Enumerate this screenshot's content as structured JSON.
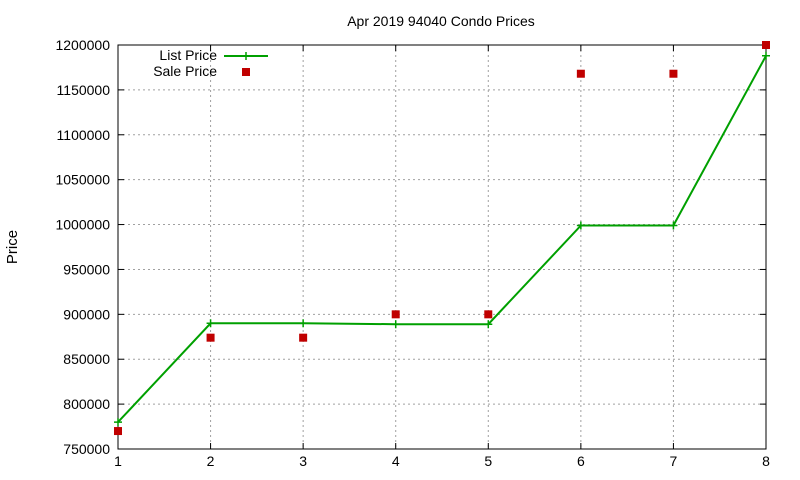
{
  "chart_data": {
    "type": "line",
    "title": "Apr 2019 94040 Condo Prices",
    "xlabel": "",
    "ylabel": "Price",
    "x": [
      1,
      2,
      3,
      4,
      5,
      6,
      7,
      8
    ],
    "xlim": [
      1,
      8
    ],
    "ylim": [
      750000,
      1200000
    ],
    "xticks": [
      "1",
      "2",
      "3",
      "4",
      "5",
      "6",
      "7",
      "8"
    ],
    "yticks": [
      "750000",
      "800000",
      "850000",
      "900000",
      "950000",
      "1000000",
      "1050000",
      "1100000",
      "1150000",
      "1200000"
    ],
    "grid": true,
    "legend_position": "top-left",
    "series": [
      {
        "name": "List Price",
        "style": "line+cross",
        "color": "#00a000",
        "values": [
          780000,
          890000,
          890000,
          889000,
          889000,
          999000,
          999000,
          1188000
        ]
      },
      {
        "name": "Sale Price",
        "style": "square",
        "color": "#c00000",
        "values": [
          770000,
          874000,
          874000,
          900000,
          900000,
          1168000,
          1168000,
          1200000
        ]
      }
    ]
  }
}
